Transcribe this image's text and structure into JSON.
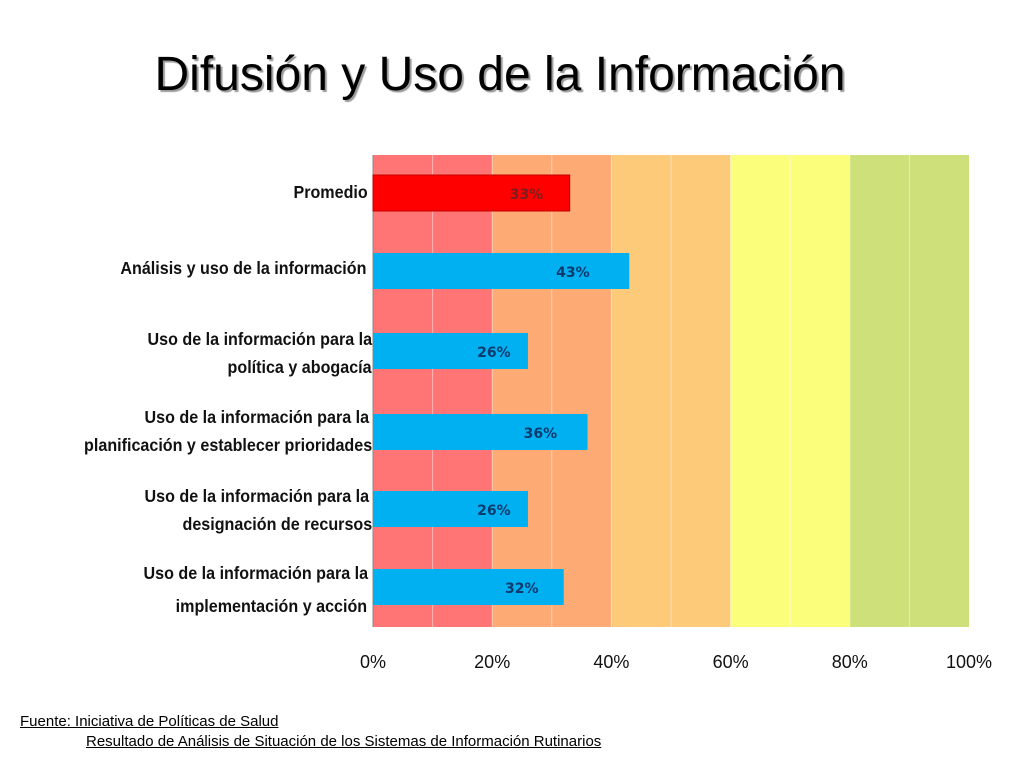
{
  "title": "Difusión y Uso de la Información",
  "chart_data": {
    "type": "bar",
    "orientation": "horizontal",
    "categories": [
      [
        "Promedio"
      ],
      [
        "Análisis y uso de la información"
      ],
      [
        "Uso de la información para la",
        "política y abogacía"
      ],
      [
        "Uso de la información para la",
        "planificación y establecer prioridades"
      ],
      [
        "Uso de la información para la",
        "designación de recursos"
      ],
      [
        "Uso de la información para la",
        "implementación y acción"
      ]
    ],
    "values": [
      33,
      43,
      26,
      36,
      26,
      32
    ],
    "data_labels": [
      "33%",
      "43%",
      "26%",
      "36%",
      "26%",
      "32%"
    ],
    "bar_colors": [
      "#ff0000",
      "#00b0f0",
      "#00b0f0",
      "#00b0f0",
      "#00b0f0",
      "#00b0f0"
    ],
    "x_ticks": [
      "0%",
      "20%",
      "40%",
      "60%",
      "80%",
      "100%"
    ],
    "xlim": [
      0,
      100
    ],
    "bands": [
      {
        "from": 0,
        "to": 20,
        "color": "#ff7575"
      },
      {
        "from": 20,
        "to": 40,
        "color": "#fdaa75"
      },
      {
        "from": 40,
        "to": 60,
        "color": "#fdca7a"
      },
      {
        "from": 60,
        "to": 80,
        "color": "#fbfe7a"
      },
      {
        "from": 80,
        "to": 100,
        "color": "#cde07a"
      }
    ],
    "grid": true
  },
  "source": {
    "line1": "Fuente: Iniciativa de Políticas de Salud",
    "line2": "Resultado de Análisis de Situación de los Sistemas de Información Rutinarios"
  }
}
